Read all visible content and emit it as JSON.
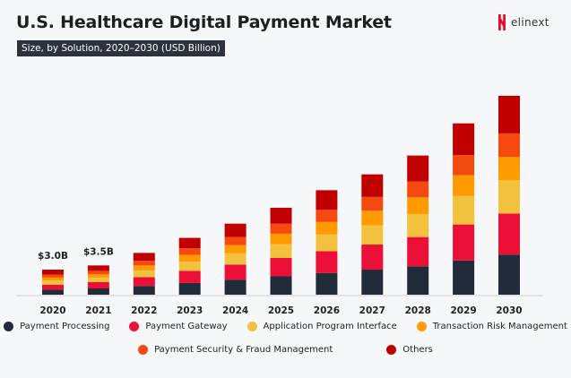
{
  "header": {
    "title": "U.S. Healthcare Digital Payment Market",
    "subtitle": "Size, by Solution, 2020–2030 (USD Billion)",
    "logo_text": "elinext"
  },
  "chart_data": {
    "type": "bar",
    "stacked": true,
    "title": "U.S. Healthcare Digital Payment Market",
    "subtitle": "Size, by Solution, 2020–2030 (USD Billion)",
    "xlabel": "",
    "ylabel": "USD Billion",
    "ylim": [
      0,
      25
    ],
    "grid": false,
    "legend_position": "bottom",
    "categories": [
      "2020",
      "2021",
      "2022",
      "2023",
      "2024",
      "2025",
      "2026",
      "2027",
      "2028",
      "2029",
      "2030"
    ],
    "series": [
      {
        "name": "Payment Processing",
        "color": "#222b3a",
        "values": [
          0.6,
          0.75,
          1.05,
          1.4,
          1.8,
          2.2,
          2.6,
          3.0,
          3.4,
          4.1,
          4.8
        ]
      },
      {
        "name": "Payment Gateway",
        "color": "#ec0f37",
        "values": [
          0.6,
          0.75,
          1.05,
          1.45,
          1.8,
          2.2,
          2.6,
          3.0,
          3.5,
          4.3,
          4.9
        ]
      },
      {
        "name": "Application Program Interface",
        "color": "#f2c23e",
        "values": [
          0.5,
          0.55,
          0.8,
          1.1,
          1.35,
          1.65,
          2.0,
          2.3,
          2.75,
          3.4,
          4.0
        ]
      },
      {
        "name": "Transaction Risk Management",
        "color": "#ff9b00",
        "values": [
          0.35,
          0.4,
          0.6,
          0.8,
          1.0,
          1.25,
          1.5,
          1.75,
          2.0,
          2.5,
          2.8
        ]
      },
      {
        "name": "Payment Security & Fraud Management",
        "color": "#f54a0f",
        "values": [
          0.35,
          0.4,
          0.55,
          0.8,
          0.95,
          1.2,
          1.45,
          1.65,
          1.9,
          2.4,
          2.8
        ]
      },
      {
        "name": "Others",
        "color": "#c00000",
        "values": [
          0.6,
          0.65,
          0.95,
          1.25,
          1.6,
          1.9,
          2.35,
          2.7,
          3.1,
          3.8,
          4.5
        ]
      }
    ],
    "annotations": [
      {
        "category": "2020",
        "text": "$3.0B"
      },
      {
        "category": "2021",
        "text": "$3.5B"
      }
    ]
  }
}
